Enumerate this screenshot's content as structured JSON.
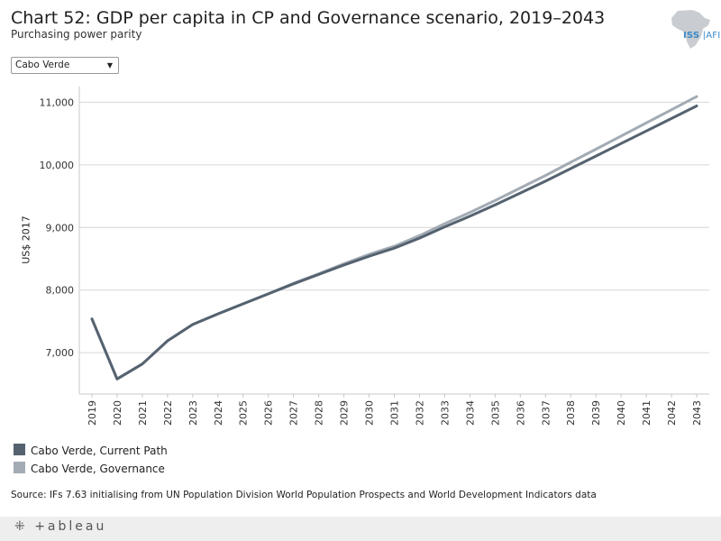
{
  "header": {
    "title": "Chart 52: GDP per capita in CP and Governance scenario, 2019–2043",
    "subtitle": "Purchasing power parity"
  },
  "logo": {
    "text_main": "ISS",
    "text_sub": "AFI"
  },
  "filter": {
    "selected": "Cabo Verde"
  },
  "chart_data": {
    "type": "line",
    "title": "Chart 52: GDP per capita in CP and Governance scenario, 2019–2043",
    "subtitle": "Purchasing power parity",
    "xlabel": "",
    "ylabel": "US$ 2017",
    "x": [
      "2019",
      "2020",
      "2021",
      "2022",
      "2023",
      "2024",
      "2025",
      "2026",
      "2027",
      "2028",
      "2029",
      "2030",
      "2031",
      "2032",
      "2033",
      "2034",
      "2035",
      "2036",
      "2037",
      "2038",
      "2039",
      "2040",
      "2041",
      "2042",
      "2043"
    ],
    "yticks": [
      7000,
      8000,
      9000,
      10000,
      11000
    ],
    "ytick_labels": [
      "7,000",
      "8,000",
      "9,000",
      "10,000",
      "11,000"
    ],
    "ylim": [
      6340,
      11250
    ],
    "grid": true,
    "legend": "bottom-left",
    "series": [
      {
        "name": "Cabo Verde, Current Path",
        "color": "#556270",
        "values": [
          7540,
          6580,
          6820,
          7190,
          7450,
          7620,
          7780,
          7940,
          8100,
          8250,
          8400,
          8540,
          8670,
          8830,
          9010,
          9180,
          9360,
          9550,
          9740,
          9940,
          10140,
          10340,
          10540,
          10740,
          10940
        ]
      },
      {
        "name": "Cabo Verde, Governance",
        "color": "#a3abb4",
        "values": [
          7540,
          6580,
          6820,
          7190,
          7450,
          7620,
          7780,
          7940,
          8110,
          8260,
          8420,
          8570,
          8700,
          8870,
          9060,
          9240,
          9430,
          9630,
          9830,
          10040,
          10250,
          10460,
          10670,
          10880,
          11090
        ]
      }
    ]
  },
  "source": "Source: IFs 7.63 initialising from UN Population Division World Population Prospects and World Development Indicators data",
  "footer": {
    "brand": "+ableau"
  }
}
